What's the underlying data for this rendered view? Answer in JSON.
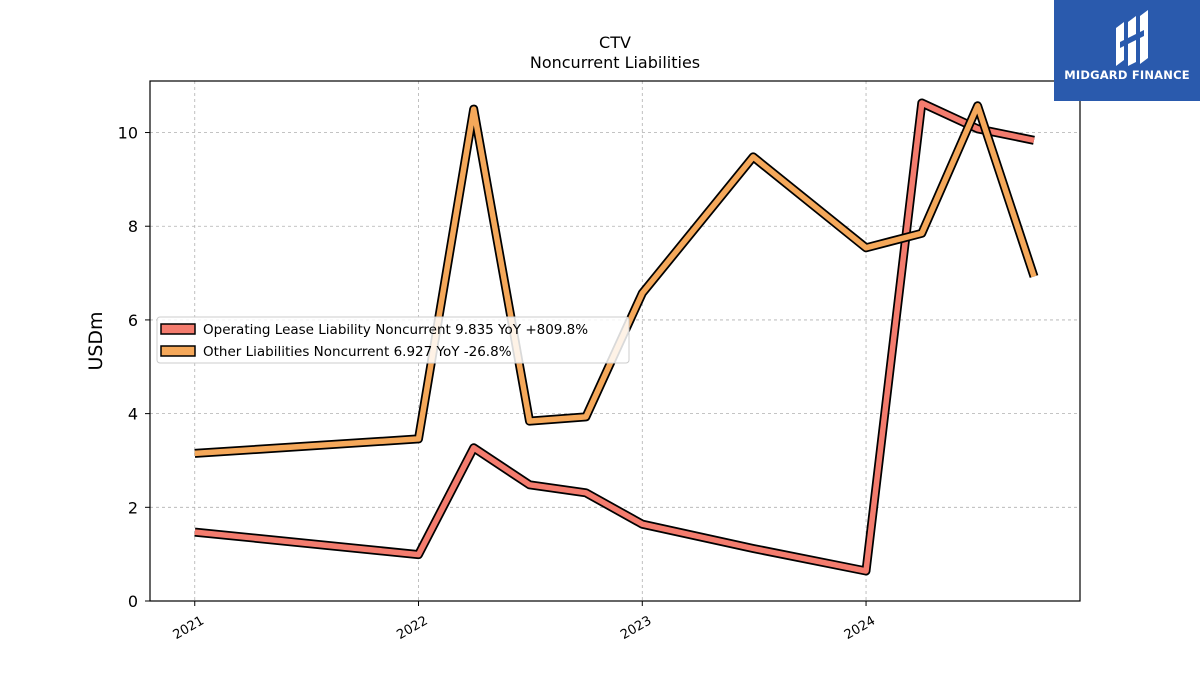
{
  "brand": {
    "name": "MIDGARD FINANCE",
    "color": "#2a5aad",
    "icon": "midgard-logo-icon"
  },
  "chart_data": {
    "type": "line",
    "title": "CTV",
    "subtitle": "Noncurrent  Liabilities",
    "xlabel": "",
    "ylabel": "USDm",
    "xlim": [
      "2020-10-20",
      "2024-12-15"
    ],
    "ylim": [
      0,
      11.1
    ],
    "x_ticks": [
      "2021",
      "2022",
      "2023",
      "2024"
    ],
    "y_ticks": [
      0,
      2,
      4,
      6,
      8,
      10
    ],
    "grid": true,
    "legend_position": "center-left",
    "x": [
      "2021-01-01",
      "2022-01-01",
      "2022-04-01",
      "2022-07-01",
      "2022-10-01",
      "2023-01-01",
      "2023-07-01",
      "2024-01-01",
      "2024-04-01",
      "2024-07-01",
      "2024-10-01"
    ],
    "series": [
      {
        "name": "Operating Lease Liability Noncurrent",
        "legend": "Operating Lease Liability Noncurrent  9.835 YoY +809.8%",
        "color": "#f47c6e",
        "values": [
          1.47,
          0.99,
          3.27,
          2.48,
          2.31,
          1.64,
          1.12,
          0.64,
          10.63,
          10.08,
          9.835
        ]
      },
      {
        "name": "Other Liabilities Noncurrent",
        "legend": "Other Liabilities Noncurrent  6.927 YoY -26.8%",
        "color": "#f5a85a",
        "values": [
          3.15,
          3.46,
          10.5,
          3.84,
          3.93,
          6.57,
          9.48,
          7.54,
          7.85,
          10.57,
          6.927
        ]
      }
    ]
  }
}
